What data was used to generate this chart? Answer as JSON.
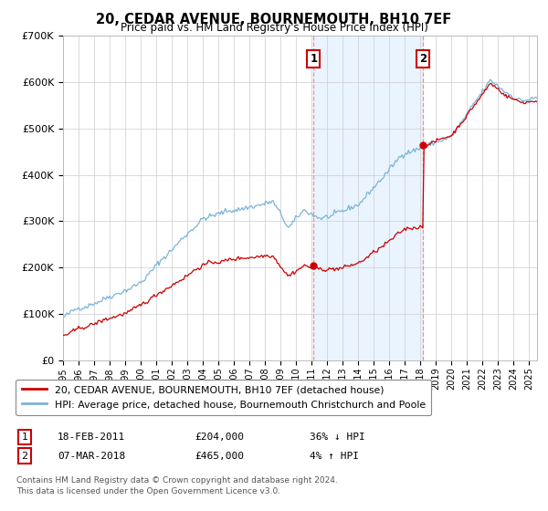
{
  "title": "20, CEDAR AVENUE, BOURNEMOUTH, BH10 7EF",
  "subtitle": "Price paid vs. HM Land Registry's House Price Index (HPI)",
  "ylim": [
    0,
    700000
  ],
  "yticks": [
    0,
    100000,
    200000,
    300000,
    400000,
    500000,
    600000,
    700000
  ],
  "ytick_labels": [
    "£0",
    "£100K",
    "£200K",
    "£300K",
    "£400K",
    "£500K",
    "£600K",
    "£700K"
  ],
  "hpi_color": "#7ab4d8",
  "sale_color": "#cc0000",
  "annotation_box_color": "#cc0000",
  "background_color": "#ffffff",
  "grid_color": "#cccccc",
  "vline_color": "#ff8888",
  "sale1_year": 2011.12,
  "sale1_price": 204000,
  "sale1_label": "1",
  "sale2_year": 2018.18,
  "sale2_price": 465000,
  "sale2_label": "2",
  "legend_line1": "20, CEDAR AVENUE, BOURNEMOUTH, BH10 7EF (detached house)",
  "legend_line2": "HPI: Average price, detached house, Bournemouth Christchurch and Poole",
  "row1_num": "1",
  "row1_date": "18-FEB-2011",
  "row1_price": "£204,000",
  "row1_change": "36% ↓ HPI",
  "row2_num": "2",
  "row2_date": "07-MAR-2018",
  "row2_price": "£465,000",
  "row2_change": "4% ↑ HPI",
  "footnote": "Contains HM Land Registry data © Crown copyright and database right 2024.\nThis data is licensed under the Open Government Licence v3.0.",
  "xmin": 1995,
  "xmax": 2025.5
}
